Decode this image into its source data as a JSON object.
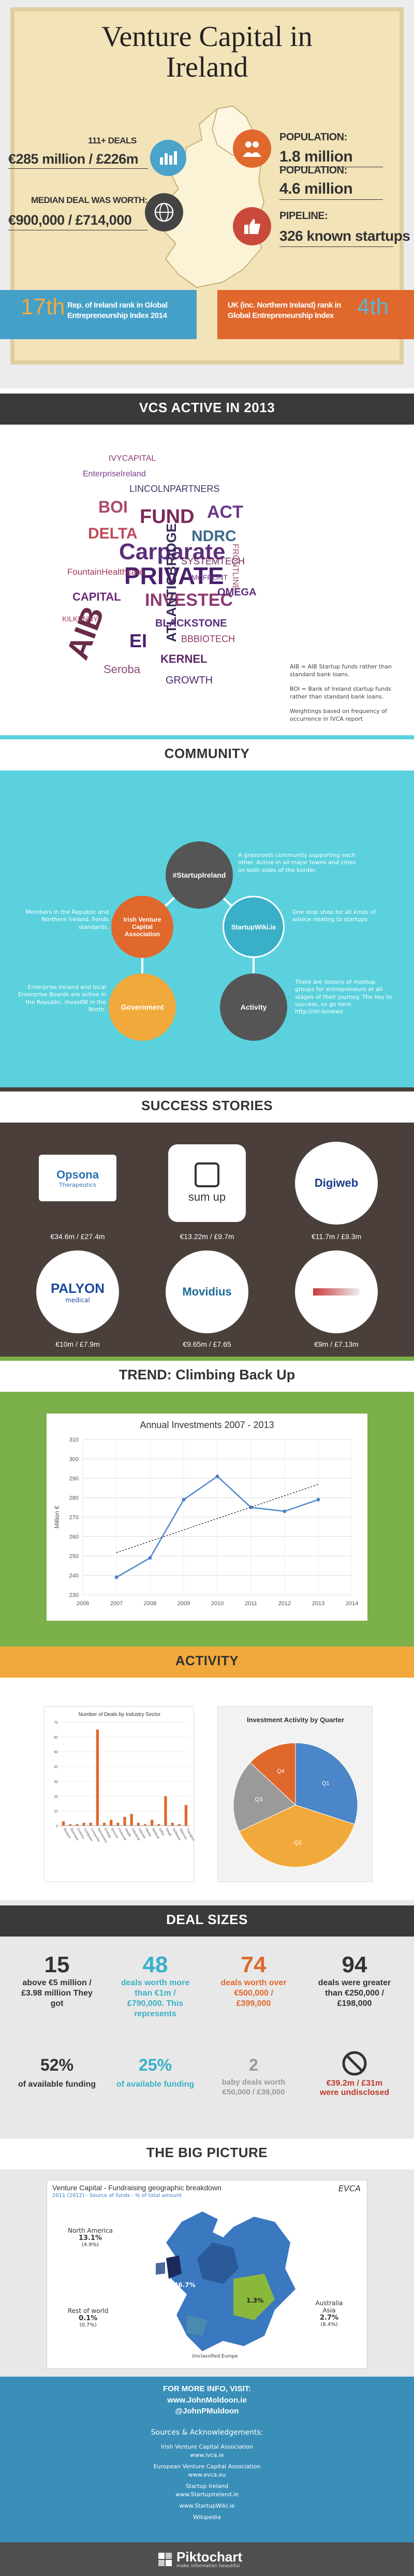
{
  "header": {
    "title_line1": "Venture Capital in",
    "title_line2": "Ireland",
    "deals_label": "111+ DEALS",
    "deals_value": "€285 million / £226m",
    "median_label": "MEDIAN DEAL WAS WORTH:",
    "median_value": "€900,000 / £714,000",
    "pop1_label": "POPULATION:",
    "pop1_value": "1.8 million",
    "pop2_label": "POPULATION:",
    "pop2_value": "4.6 million",
    "pipeline_label": "PIPELINE:",
    "pipeline_value": "326 known startups",
    "roi_rank": "17th",
    "roi_text": "Rep. of Ireland rank in Global Entrepreneurship Index 2014",
    "uk_text": "UK (inc. Northern Ireland) rank in Global Entrepreneurship Index",
    "uk_rank": "4th"
  },
  "vcs": {
    "title": "VCs ACTIVE IN 2013",
    "words": [
      "Carparate",
      "PRIVATE",
      "INVESTEC",
      "AIB",
      "ATLANTICBRIDGE",
      "FUND",
      "BOI",
      "BLACKSTONE",
      "NDRC",
      "DELTA",
      "ACT",
      "EI",
      "Seroba",
      "FountainHealthcare",
      "KERNEL",
      "EnterpriseIreland",
      "SYSTEMTECH",
      "LINCOLNPARTNERS",
      "BBBIOTECH",
      "OMEGA",
      "FRONTLINE",
      "CAPITAL",
      "GROWTH",
      "IVYCAPITAL",
      "KILKENNY",
      "MCFRONT"
    ],
    "note1": "AIB = AIB Startup funds rather than standard bank loans.",
    "note2": "BOI = Bank of Ireland startup funds rather than standard bank loans.",
    "note3": "Weightings based on frequency of occurrence in IVCA report"
  },
  "community": {
    "title": "COMMUNITY",
    "hashtag": "#StartupIreland",
    "hashtag_desc": "A grassroots community supporting each other. Active in all major towns and cities on both sides of the border.",
    "ivca": "Irish Venture Capital Association",
    "ivca_desc": "Members in the Republic and Northern Ireland. Fends standards.",
    "wiki": "StartupWiki.ie",
    "wiki_desc": "One stop shop for all kinds of advice relating to startups.",
    "gov": "Government",
    "gov_desc": "Enterprise Ireland and local Enterprise Boards are active in the Republic, InvestNI in the North.",
    "activity": "Activity",
    "activity_desc": "There are dozens of meetup groups for entrepreneurs at all stages of their journey. The key to success, so go here: http://str.ie/news"
  },
  "success": {
    "title": "SUCCESS STORIES",
    "items": [
      {
        "name": "Opsona",
        "sub": "Therapeutics",
        "value": "€34.6m / £27.4m"
      },
      {
        "name": "sum up",
        "sub": "",
        "value": "€13.22m / £9.7m"
      },
      {
        "name": "Digiweb",
        "sub": "",
        "value": "€11.7m / £9.3m"
      },
      {
        "name": "PALYON",
        "sub": "medical",
        "value": "€10m / £7.9m"
      },
      {
        "name": "Movidius",
        "sub": "",
        "value": "€9.65m / £7.65"
      },
      {
        "name": "",
        "sub": "",
        "value": "€9m / £7.13m"
      }
    ]
  },
  "trend": {
    "title": "TREND: Climbing Back Up"
  },
  "chart_data": [
    {
      "type": "line",
      "title": "Annual Investments 2007 - 2013",
      "ylabel": "Million €",
      "x": [
        "2006",
        "2007",
        "2008",
        "2009",
        "2010",
        "2011",
        "2012",
        "2013",
        "2014"
      ],
      "series": [
        {
          "name": "Investment",
          "x": [
            "2007",
            "2008",
            "2009",
            "2010",
            "2011",
            "2012",
            "2013"
          ],
          "values": [
            239,
            249,
            279,
            291,
            275,
            273,
            279
          ]
        }
      ],
      "ylim": [
        230,
        310
      ],
      "yticks": [
        230,
        240,
        250,
        260,
        270,
        280,
        290,
        300,
        310
      ]
    },
    {
      "type": "bar",
      "title": "Number of Deals by Industry Sector",
      "categories": [
        "Biotech",
        "Business",
        "Comms",
        "Computer",
        "Consumer",
        "Electronics",
        "Energy",
        "Environ",
        "Financial",
        "Health",
        "Industrial",
        "Internet",
        "Media",
        "Medical",
        "Other",
        "Retail",
        "Software",
        "Telecom",
        "Transport"
      ],
      "values": [
        3,
        1,
        1,
        2,
        2,
        65,
        2,
        4,
        2,
        6,
        8,
        2,
        1,
        4,
        1,
        20,
        2,
        1,
        14
      ],
      "ylim": [
        0,
        70
      ]
    },
    {
      "type": "pie",
      "title": "Investment Activity by Quarter",
      "labels": [
        "Q1",
        "Q2",
        "Q3",
        "Q4"
      ],
      "values": [
        30,
        38,
        19,
        13
      ],
      "colors": [
        "#4a86c8",
        "#4a86c8",
        "#9a9a9a",
        "#f2a93b"
      ]
    },
    {
      "type": "bar",
      "title": "Venture Capital - Fundraising geographic breakdown",
      "categories": [
        "North America",
        "Rest of world",
        "Australia Asia",
        "Ireland",
        "UK",
        "Other Europe"
      ],
      "values": [
        13.1,
        0.1,
        2.7,
        46.7,
        6.4,
        1.3
      ]
    }
  ],
  "activity": {
    "title": "ACTIVITY",
    "pie_labels": [
      "Q1",
      "Q2",
      "Q3",
      "Q4"
    ]
  },
  "deals": {
    "title": "DEAL SIZES",
    "s1_num": "15",
    "s1_text": "above €5 million / £3.98 million They got",
    "s2_num": "48",
    "s2_text": "deals worth more than €1m / £790,000. This represents",
    "s3_num": "74",
    "s3_text": "deals worth over €500,000 / £399,000",
    "s4_num": "94",
    "s4_text": "deals were greater than €250,000 / £198,000",
    "p1": "52%",
    "p1_text": "of available funding",
    "p2": "25%",
    "p2_text": "of available funding",
    "p3": "2",
    "p3_text": "baby deals worth €50,000 / £39,000",
    "p4": "€39.2m / £31m",
    "p4_text": "were undisclosed"
  },
  "bigpicture": {
    "title": "THE BIG PICTURE",
    "map_title": "Venture Capital - Fundraising geographic breakdown",
    "map_sub": "2011 (2012) - Source of funds - % of total amount",
    "na": "North America",
    "na_v": "13.1%",
    "na_p": "(4.9%)",
    "row": "Rest of world",
    "row_v": "0.1%",
    "row_p": "(0.7%)",
    "aus": "Australia Asia",
    "aus_v": "2.7%",
    "aus_p": "(8.4%)",
    "ie_v": "46.7%",
    "uk_v": "6.4%",
    "oe_v": "1.3%",
    "legend": "Unclassified Europe"
  },
  "footer": {
    "more": "FOR MORE INFO, VISIT:",
    "site": "www.JohnMoldoon.ie",
    "twitter": "@JohnPMuldoon",
    "sources": "Sources & Acknowledgements:",
    "src1": "Irish Venture Capital Association",
    "src1u": "www.ivca.ie",
    "src2": "European Venture Capital Association",
    "src2u": "www.evca.eu",
    "src3": "Startup Ireland",
    "src3u": "www.StartupIreland.ie",
    "src4": "www.StartupWiki.ie",
    "src5": "Wikipedia",
    "brand": "Piktochart",
    "brand_sub": "make information beautiful"
  }
}
